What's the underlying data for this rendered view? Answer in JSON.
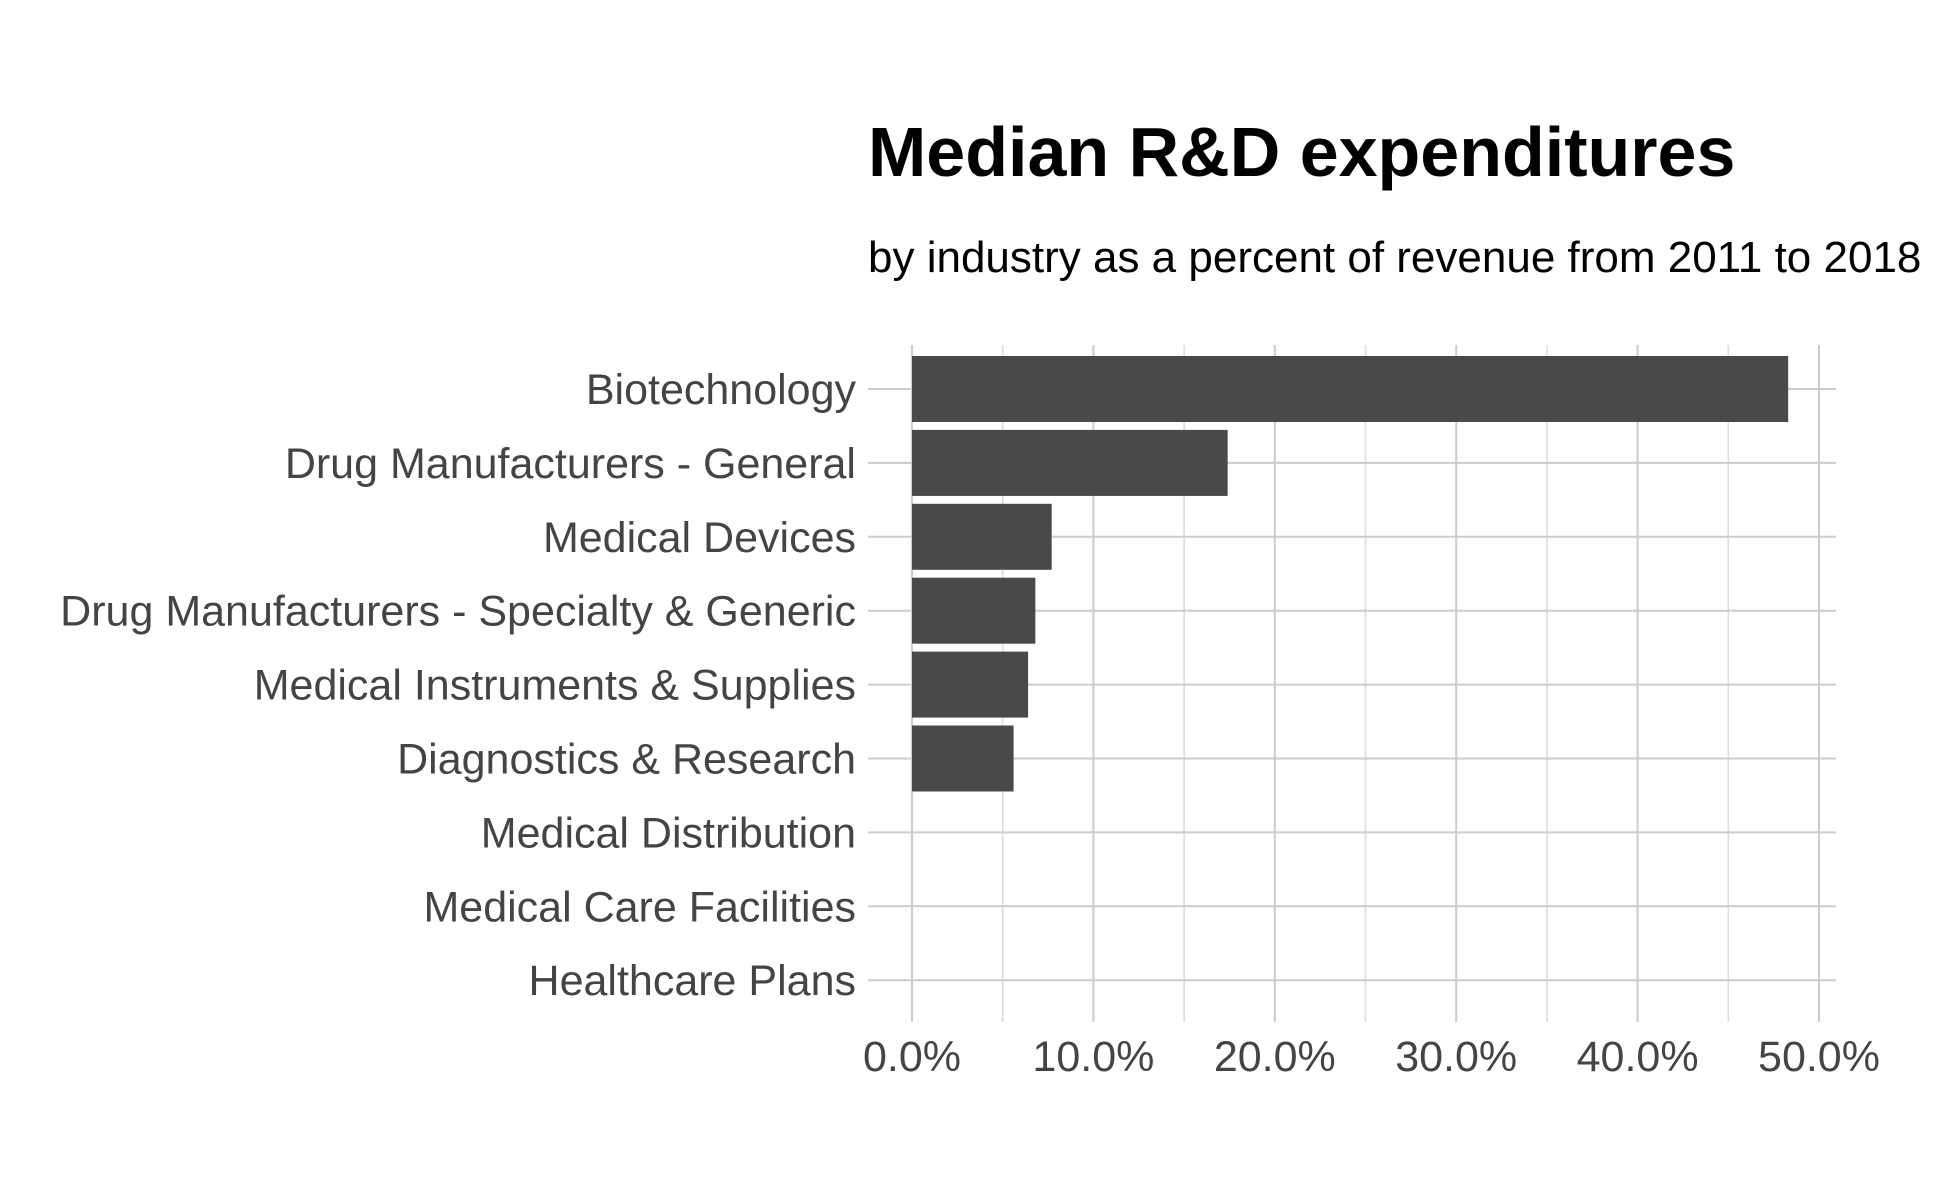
{
  "chart_data": {
    "type": "bar",
    "orientation": "horizontal",
    "title": "Median R&D expenditures",
    "subtitle": "by industry as a percent of revenue from 2011 to 2018",
    "xlabel": "",
    "ylabel": "",
    "categories": [
      "Biotechnology",
      "Drug Manufacturers - General",
      "Medical Devices",
      "Drug Manufacturers - Specialty & Generic",
      "Medical Instruments & Supplies",
      "Diagnostics & Research",
      "Medical Distribution",
      "Medical Care Facilities",
      "Healthcare Plans"
    ],
    "values": [
      48.3,
      17.4,
      7.7,
      6.8,
      6.4,
      5.6,
      0.0,
      0.0,
      0.0
    ],
    "value_unit": "%",
    "xlim": [
      0,
      50
    ],
    "xticks": [
      0,
      10,
      20,
      30,
      40,
      50
    ],
    "xtick_labels": [
      "0.0%",
      "10.0%",
      "20.0%",
      "30.0%",
      "40.0%",
      "50.0%"
    ],
    "grid": true,
    "legend": "none",
    "bar_color": "#494949"
  }
}
